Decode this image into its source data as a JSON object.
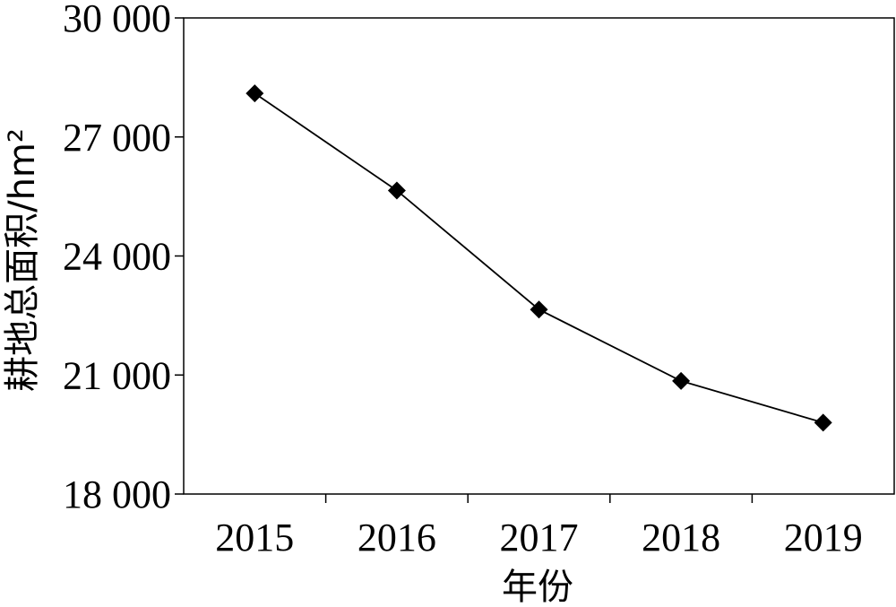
{
  "chart_data": {
    "type": "line",
    "title": "",
    "xlabel": "年份",
    "ylabel": "耕地总面积/hm²",
    "categories": [
      "2015",
      "2016",
      "2017",
      "2018",
      "2019"
    ],
    "series": [
      {
        "values": [
          28100,
          25650,
          22650,
          20850,
          19800
        ],
        "marker": "diamond",
        "color": "#000000"
      }
    ],
    "ylim": [
      18000,
      30000
    ],
    "yticks": [
      18000,
      21000,
      24000,
      27000,
      30000
    ],
    "ytick_labels": [
      "18 000",
      "21 000",
      "24 000",
      "27 000",
      "30 000"
    ],
    "grid": false,
    "legend": "none"
  }
}
